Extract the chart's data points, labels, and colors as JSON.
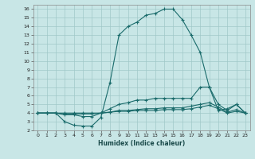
{
  "title": "",
  "xlabel": "Humidex (Indice chaleur)",
  "bg_color": "#c8e6e6",
  "grid_color": "#a0c8c8",
  "line_color": "#1a6b6b",
  "xlim": [
    -0.5,
    23.5
  ],
  "ylim": [
    2,
    16.5
  ],
  "xticks": [
    0,
    1,
    2,
    3,
    4,
    5,
    6,
    7,
    8,
    9,
    10,
    11,
    12,
    13,
    14,
    15,
    16,
    17,
    18,
    19,
    20,
    21,
    22,
    23
  ],
  "yticks": [
    2,
    3,
    4,
    5,
    6,
    7,
    8,
    9,
    10,
    11,
    12,
    13,
    14,
    15,
    16
  ],
  "line1_x": [
    0,
    1,
    2,
    3,
    4,
    5,
    6,
    7,
    8,
    9,
    10,
    11,
    12,
    13,
    14,
    15,
    16,
    17,
    18,
    19,
    20,
    21,
    22,
    23
  ],
  "line1_y": [
    4,
    4,
    4,
    3,
    2.6,
    2.5,
    2.5,
    3.5,
    7.5,
    13,
    14,
    14.5,
    15.3,
    15.5,
    16,
    16,
    14.8,
    13,
    11,
    7,
    4.3,
    4.5,
    5,
    4
  ],
  "line2_x": [
    0,
    1,
    2,
    3,
    4,
    5,
    6,
    7,
    8,
    9,
    10,
    11,
    12,
    13,
    14,
    15,
    16,
    17,
    18,
    19,
    20,
    21,
    22,
    23
  ],
  "line2_y": [
    4,
    4,
    4,
    3.8,
    3.8,
    3.6,
    3.6,
    4,
    4.5,
    5,
    5.2,
    5.5,
    5.5,
    5.7,
    5.7,
    5.7,
    5.7,
    5.7,
    7,
    7,
    5,
    4.3,
    5,
    4
  ],
  "line3_x": [
    0,
    1,
    2,
    3,
    4,
    5,
    6,
    7,
    8,
    9,
    10,
    11,
    12,
    13,
    14,
    15,
    16,
    17,
    18,
    19,
    20,
    21,
    22,
    23
  ],
  "line3_y": [
    4,
    4,
    4,
    3.9,
    3.9,
    3.9,
    3.9,
    4,
    4.1,
    4.3,
    4.3,
    4.4,
    4.5,
    4.5,
    4.6,
    4.6,
    4.6,
    4.8,
    5.0,
    5.2,
    4.7,
    4.1,
    4.4,
    4
  ],
  "line4_x": [
    0,
    1,
    2,
    3,
    4,
    5,
    6,
    7,
    8,
    9,
    10,
    11,
    12,
    13,
    14,
    15,
    16,
    17,
    18,
    19,
    20,
    21,
    22,
    23
  ],
  "line4_y": [
    4,
    4,
    4,
    4,
    4,
    4,
    4,
    4,
    4.1,
    4.2,
    4.2,
    4.3,
    4.3,
    4.3,
    4.4,
    4.4,
    4.4,
    4.5,
    4.7,
    4.9,
    4.5,
    4,
    4.2,
    4
  ]
}
